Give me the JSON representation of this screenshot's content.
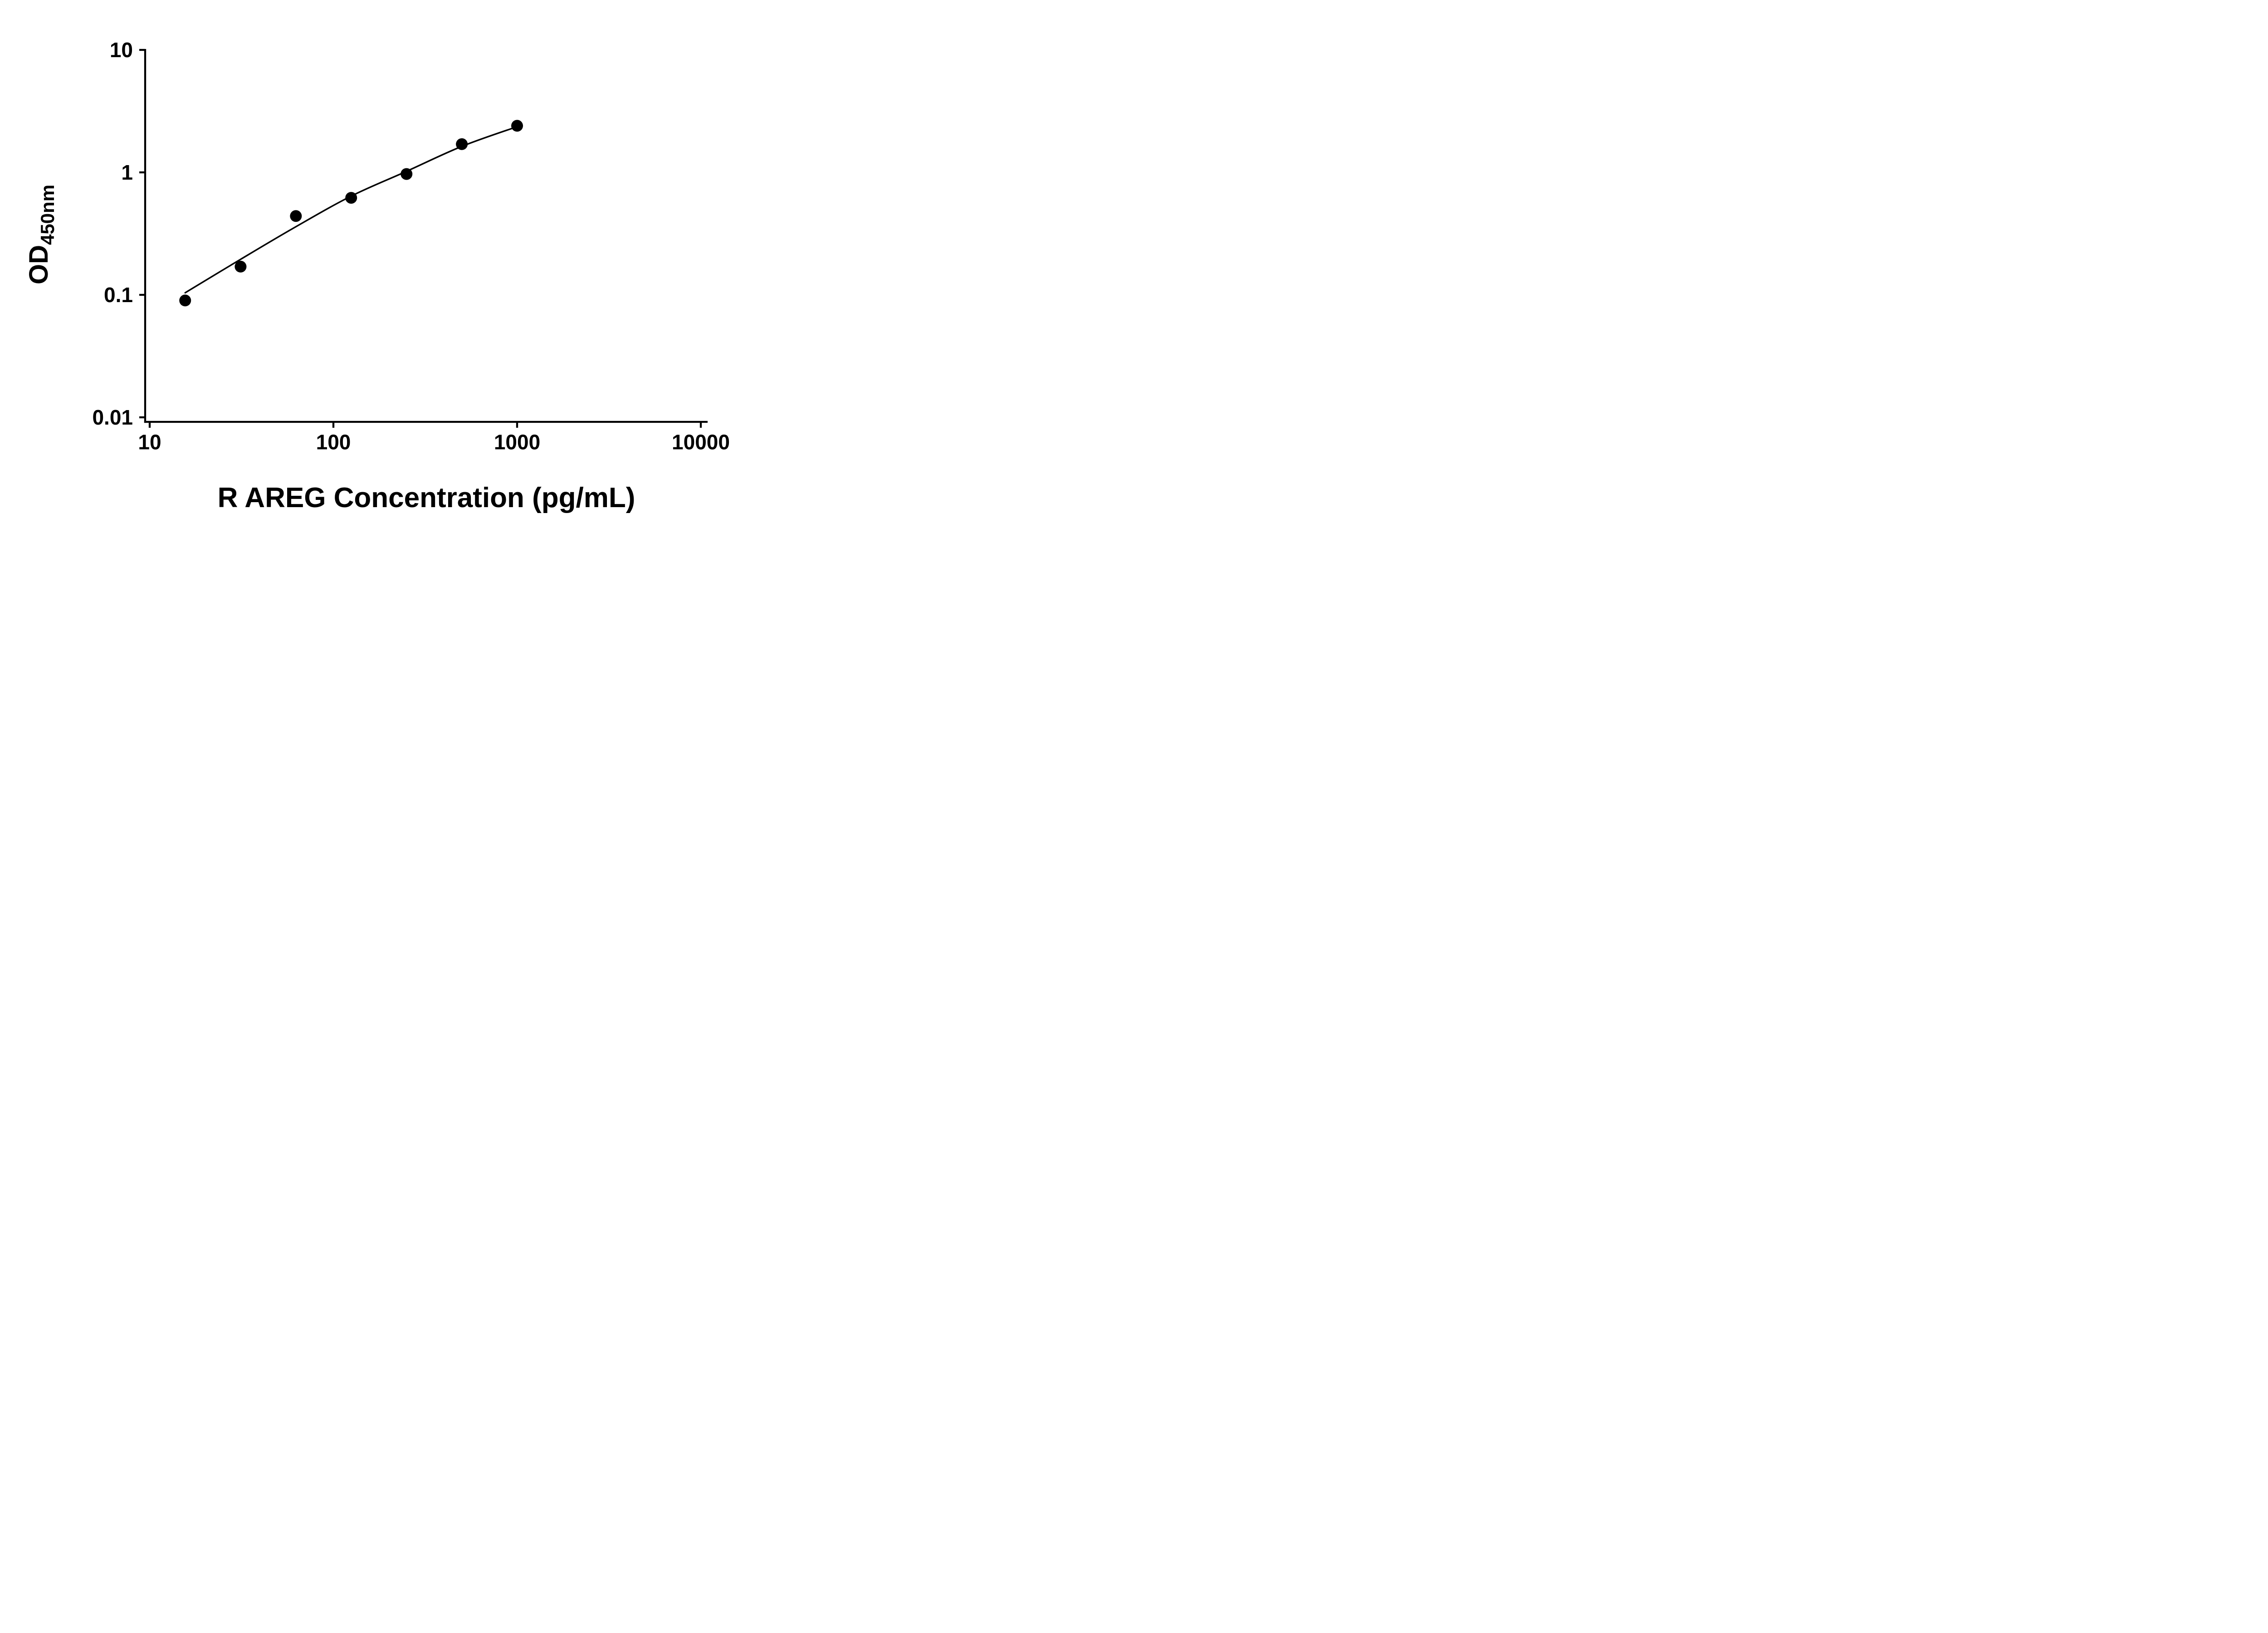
{
  "figure": {
    "background": "#ffffff",
    "foreground": "#000000"
  },
  "chart_data": {
    "type": "scatter",
    "title": "",
    "xlabel": "R AREG Concentration (pg/mL)",
    "ylabel": "OD",
    "ylabel_subscript": "450nm",
    "x_scale": "log10",
    "y_scale": "log10",
    "xlim": [
      10,
      10000
    ],
    "ylim": [
      0.01,
      10
    ],
    "grid": false,
    "legend": "none",
    "x_tick_values": [
      10,
      100,
      1000,
      10000
    ],
    "x_tick_labels": [
      "10",
      "100",
      "1000",
      "10000"
    ],
    "y_tick_values": [
      10,
      1,
      0.1,
      0.01
    ],
    "y_tick_labels": [
      "10",
      "1",
      "0.1",
      "0.01"
    ],
    "series": [
      {
        "marker": "filled-circle",
        "color": "#000000",
        "x": [
          15.6,
          31.25,
          62.5,
          125,
          250,
          500,
          1000
        ],
        "y": [
          0.09,
          0.17,
          0.44,
          0.62,
          0.97,
          1.7,
          2.4
        ]
      }
    ],
    "fit_curve": {
      "color": "#000000",
      "x": [
        15.6,
        31.25,
        62.5,
        125,
        250,
        500,
        1000
      ],
      "y": [
        0.104,
        0.195,
        0.36,
        0.64,
        1.02,
        1.63,
        2.36
      ]
    }
  }
}
